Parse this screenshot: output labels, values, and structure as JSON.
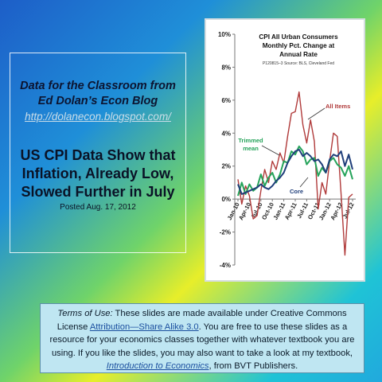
{
  "left_panel": {
    "blog_line1": "Data for the Classroom from",
    "blog_line2": "Ed Dolan’s Econ Blog",
    "blog_url": "http://dolanecon.blogspot.com/",
    "headline": [
      "US CPI Data Show that",
      "Inflation, Already Low,",
      "Slowed Further in July"
    ],
    "posted": "Posted Aug. 17, 2012"
  },
  "terms": {
    "label": "Terms of Use:",
    "text1": " These slides are made available under Creative Commons License ",
    "license_link": "Attribution—Share Alike 3.0",
    "text2": ". You are free to use these slides as a resource for your economics classes together with whatever textbook you are using. If you like the slides, you may also want to take a look at my textbook, ",
    "book_link": "Introduction to Economics",
    "text3": ", from BVT Publishers."
  },
  "chart_data": {
    "type": "line",
    "title": [
      "CPI All Urban Consumers",
      "Monthly Pct. Change at",
      "Annual Rate"
    ],
    "source": "P120815–3 Source: BLS, Cleveland Fed",
    "ylim": [
      -4,
      10
    ],
    "yticks": [
      "10%",
      "8%",
      "6%",
      "4%",
      "2%",
      "0%",
      "-2%",
      "-4%"
    ],
    "xticks": [
      "Jan-10",
      "Apr-10",
      "Jul-10",
      "Oct-10",
      "Jan-11",
      "Apr-11",
      "Jul-11",
      "Oct-11",
      "Jan-12",
      "Apr-12",
      "Jul-12"
    ],
    "x": [
      "Jan-10",
      "Feb-10",
      "Mar-10",
      "Apr-10",
      "May-10",
      "Jun-10",
      "Jul-10",
      "Aug-10",
      "Sep-10",
      "Oct-10",
      "Nov-10",
      "Dec-10",
      "Jan-11",
      "Feb-11",
      "Mar-11",
      "Apr-11",
      "May-11",
      "Jun-11",
      "Jul-11",
      "Aug-11",
      "Sep-11",
      "Oct-11",
      "Nov-11",
      "Dec-11",
      "Jan-12",
      "Feb-12",
      "Mar-12",
      "Apr-12",
      "May-12",
      "Jun-12",
      "Jul-12"
    ],
    "series": [
      {
        "name": "All Items",
        "color": "#b03a3a",
        "values": [
          1.2,
          -0.3,
          0.8,
          0.2,
          -1.2,
          -1.0,
          0.5,
          1.8,
          1.0,
          2.3,
          1.8,
          2.8,
          2.2,
          3.8,
          5.2,
          5.3,
          6.5,
          4.5,
          3.4,
          4.8,
          3.5,
          -0.6,
          1.0,
          0.3,
          2.3,
          4.0,
          3.8,
          0.3,
          -3.4,
          0.1,
          0.3
        ]
      },
      {
        "name": "Core",
        "color": "#1f3e7a",
        "values": [
          0.9,
          0.3,
          0.4,
          0.5,
          0.6,
          0.7,
          0.9,
          0.7,
          0.6,
          0.8,
          1.1,
          1.3,
          1.6,
          2.2,
          2.6,
          2.9,
          3.0,
          2.6,
          2.8,
          2.6,
          2.3,
          2.4,
          2.1,
          1.6,
          2.4,
          2.7,
          2.6,
          2.9,
          2.0,
          2.7,
          1.8
        ]
      },
      {
        "name": "Trimmed mean",
        "color": "#25a35a",
        "values": [
          0.2,
          1.0,
          0.3,
          0.9,
          0.5,
          0.7,
          1.5,
          0.8,
          1.3,
          1.6,
          1.0,
          1.5,
          2.3,
          2.2,
          2.9,
          2.7,
          3.2,
          2.9,
          2.1,
          2.4,
          2.5,
          1.4,
          1.9,
          1.6,
          2.3,
          2.5,
          2.1,
          1.9,
          1.4,
          2.0,
          1.2
        ]
      }
    ],
    "grid": false,
    "legend": "inline labels"
  }
}
